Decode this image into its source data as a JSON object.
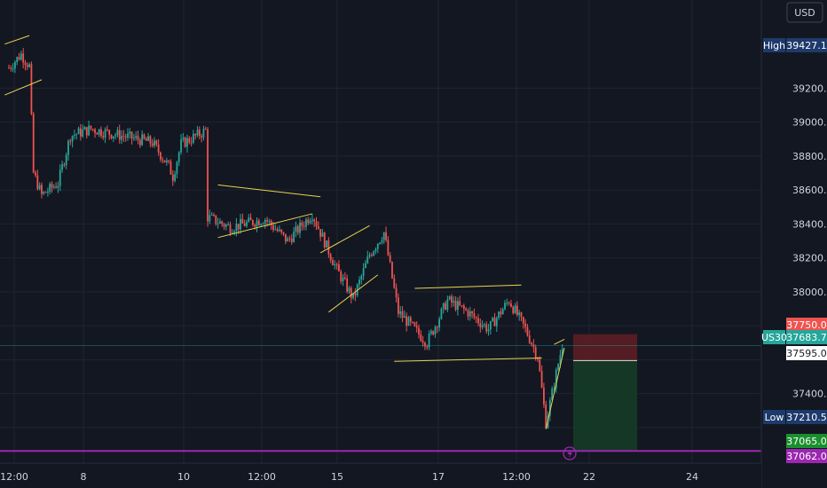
{
  "currency": "USD",
  "colors": {
    "background": "#131722",
    "grid": "#1f2433",
    "up": "#26a69a",
    "down": "#ef5350",
    "trendline": "#e8d44d",
    "support": "#9c27b0",
    "stop_zone": "#5b1e24",
    "target_zone": "#143a26",
    "white": "#ffffff"
  },
  "chart_data": {
    "type": "candlestick",
    "symbol": "US30",
    "ylim": [
      36990,
      39720
    ],
    "y_ticks": [
      "39200.0",
      "39000.0",
      "38800.0",
      "38600.0",
      "38400.0",
      "38200.0",
      "38000.0",
      "37400.0"
    ],
    "x_ticks": [
      "12:00",
      "8",
      "10",
      "12:00",
      "15",
      "17",
      "12:00",
      "22",
      "24"
    ],
    "price_tags": [
      {
        "id": "high",
        "label": "High",
        "value": "39427.1",
        "price": 39427.1
      },
      {
        "id": "stop",
        "label": "",
        "value": "37750.0",
        "price": 37750.0
      },
      {
        "id": "last",
        "label": "US30",
        "value": "37683.7",
        "price": 37683.7
      },
      {
        "id": "entry",
        "label": "",
        "value": "37595.0",
        "price": 37595.0
      },
      {
        "id": "low",
        "label": "Low",
        "value": "37210.5",
        "price": 37210.5
      },
      {
        "id": "target",
        "label": "",
        "value": "37065.0",
        "price": 37065.0
      },
      {
        "id": "support",
        "label": "",
        "value": "37062.0",
        "price": 37062.0
      }
    ],
    "position": {
      "entry": 37595.0,
      "stop": 37750.0,
      "target": 37065.0
    },
    "support_level": 37062.0,
    "anchors": [
      {
        "t": 0,
        "p": 39320
      },
      {
        "t": 6,
        "p": 39400
      },
      {
        "t": 10,
        "p": 39330
      },
      {
        "t": 12,
        "p": 38700
      },
      {
        "t": 16,
        "p": 38570
      },
      {
        "t": 24,
        "p": 38640
      },
      {
        "t": 30,
        "p": 38920
      },
      {
        "t": 40,
        "p": 38960
      },
      {
        "t": 55,
        "p": 38920
      },
      {
        "t": 70,
        "p": 38880
      },
      {
        "t": 78,
        "p": 38740
      },
      {
        "t": 80,
        "p": 38680
      },
      {
        "t": 84,
        "p": 38870
      },
      {
        "t": 96,
        "p": 38950
      },
      {
        "t": 97,
        "p": 38440
      },
      {
        "t": 108,
        "p": 38380
      },
      {
        "t": 125,
        "p": 38430
      },
      {
        "t": 136,
        "p": 38300
      },
      {
        "t": 148,
        "p": 38460
      },
      {
        "t": 160,
        "p": 38130
      },
      {
        "t": 168,
        "p": 37960
      },
      {
        "t": 176,
        "p": 38220
      },
      {
        "t": 183,
        "p": 38350
      },
      {
        "t": 190,
        "p": 37880
      },
      {
        "t": 204,
        "p": 37700
      },
      {
        "t": 214,
        "p": 37950
      },
      {
        "t": 224,
        "p": 37880
      },
      {
        "t": 234,
        "p": 37780
      },
      {
        "t": 244,
        "p": 37950
      },
      {
        "t": 252,
        "p": 37780
      },
      {
        "t": 258,
        "p": 37620
      },
      {
        "t": 262,
        "p": 37230
      },
      {
        "t": 270,
        "p": 37690
      }
    ],
    "trendlines": [
      {
        "t1": -2,
        "p1": 39460,
        "t2": 10,
        "p2": 39510
      },
      {
        "t1": -2,
        "p1": 39160,
        "t2": 16,
        "p2": 39250
      },
      {
        "t1": 102,
        "p1": 38630,
        "t2": 152,
        "p2": 38560
      },
      {
        "t1": 102,
        "p1": 38320,
        "t2": 148,
        "p2": 38460
      },
      {
        "t1": 152,
        "p1": 38230,
        "t2": 176,
        "p2": 38390
      },
      {
        "t1": 156,
        "p1": 37880,
        "t2": 180,
        "p2": 38100
      },
      {
        "t1": 198,
        "p1": 38020,
        "t2": 250,
        "p2": 38040
      },
      {
        "t1": 188,
        "p1": 37590,
        "t2": 260,
        "p2": 37610
      },
      {
        "t1": 262,
        "p1": 37190,
        "t2": 271,
        "p2": 37670
      },
      {
        "t1": 266,
        "p1": 37690,
        "t2": 271,
        "p2": 37720
      }
    ]
  }
}
